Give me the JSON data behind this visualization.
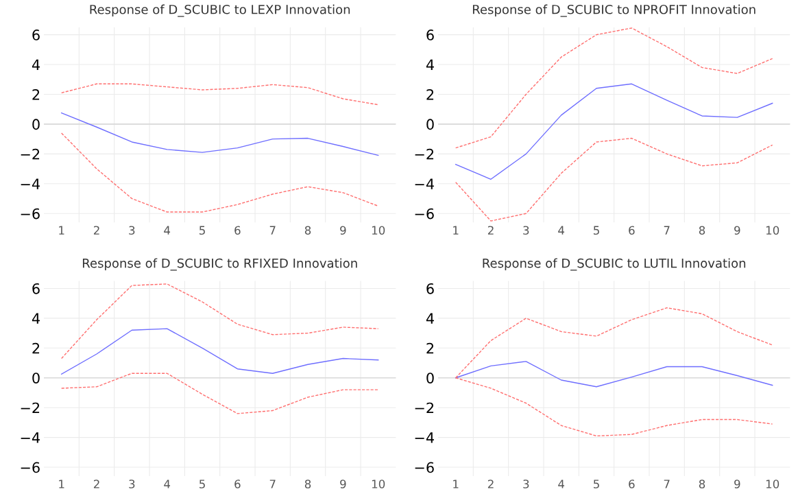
{
  "chart_data": [
    {
      "type": "line",
      "title": "Response of D_SCUBIC to LEXP Innovation",
      "categories": [
        "1",
        "2",
        "3",
        "4",
        "5",
        "6",
        "7",
        "8",
        "9",
        "10"
      ],
      "ylim": [
        -6.6,
        6.5
      ],
      "yticks": [
        -6,
        -4,
        -2,
        0,
        2,
        4,
        6
      ],
      "grid": true,
      "ref_lines": [
        {
          "axis": "y",
          "value": 0,
          "color": "#d9d9d9"
        }
      ],
      "series": [
        {
          "color": "#6e6eff",
          "line_style": "solid",
          "values": [
            0.75,
            -0.2,
            -1.2,
            -1.7,
            -1.9,
            -1.6,
            -1.0,
            -0.95,
            -1.5,
            -2.1
          ]
        },
        {
          "color": "#ff6e6e",
          "line_style": "dashed",
          "values": [
            2.1,
            2.7,
            2.7,
            2.5,
            2.3,
            2.4,
            2.65,
            2.45,
            1.7,
            1.3
          ]
        },
        {
          "color": "#ff6e6e",
          "line_style": "dashed",
          "values": [
            -0.6,
            -3.0,
            -5.0,
            -5.9,
            -5.9,
            -5.4,
            -4.7,
            -4.2,
            -4.6,
            -5.5
          ]
        }
      ]
    },
    {
      "type": "line",
      "title": "Response of D_SCUBIC to NPROFIT Innovation",
      "categories": [
        "1",
        "2",
        "3",
        "4",
        "5",
        "6",
        "7",
        "8",
        "9",
        "10"
      ],
      "ylim": [
        -6.6,
        6.5
      ],
      "yticks": [
        -6,
        -4,
        -2,
        0,
        2,
        4,
        6
      ],
      "grid": true,
      "ref_lines": [
        {
          "axis": "y",
          "value": 0,
          "color": "#d9d9d9"
        }
      ],
      "series": [
        {
          "color": "#6e6eff",
          "line_style": "solid",
          "values": [
            -2.7,
            -3.7,
            -2.0,
            0.6,
            2.4,
            2.7,
            1.6,
            0.55,
            0.45,
            1.4
          ]
        },
        {
          "color": "#ff6e6e",
          "line_style": "dashed",
          "values": [
            -1.6,
            -0.85,
            2.0,
            4.5,
            6.0,
            6.45,
            5.2,
            3.8,
            3.4,
            4.4
          ]
        },
        {
          "color": "#ff6e6e",
          "line_style": "dashed",
          "values": [
            -3.9,
            -6.5,
            -6.0,
            -3.3,
            -1.2,
            -0.95,
            -2.0,
            -2.8,
            -2.6,
            -1.4
          ]
        }
      ]
    },
    {
      "type": "line",
      "title": "Response of D_SCUBIC to RFIXED Innovation",
      "categories": [
        "1",
        "2",
        "3",
        "4",
        "5",
        "6",
        "7",
        "8",
        "9",
        "10"
      ],
      "ylim": [
        -6.6,
        6.5
      ],
      "yticks": [
        -6,
        -4,
        -2,
        0,
        2,
        4,
        6
      ],
      "grid": true,
      "ref_lines": [
        {
          "axis": "y",
          "value": 0,
          "color": "#d9d9d9"
        }
      ],
      "series": [
        {
          "color": "#6e6eff",
          "line_style": "solid",
          "values": [
            0.25,
            1.6,
            3.2,
            3.3,
            2.0,
            0.6,
            0.3,
            0.9,
            1.3,
            1.2
          ]
        },
        {
          "color": "#ff6e6e",
          "line_style": "dashed",
          "values": [
            1.3,
            3.9,
            6.2,
            6.3,
            5.1,
            3.6,
            2.9,
            3.0,
            3.4,
            3.3
          ]
        },
        {
          "color": "#ff6e6e",
          "line_style": "dashed",
          "values": [
            -0.7,
            -0.6,
            0.3,
            0.3,
            -1.1,
            -2.4,
            -2.2,
            -1.3,
            -0.8,
            -0.8
          ]
        }
      ]
    },
    {
      "type": "line",
      "title": "Response of D_SCUBIC to LUTIL Innovation",
      "categories": [
        "1",
        "2",
        "3",
        "4",
        "5",
        "6",
        "7",
        "8",
        "9",
        "10"
      ],
      "ylim": [
        -6.6,
        6.5
      ],
      "yticks": [
        -6,
        -4,
        -2,
        0,
        2,
        4,
        6
      ],
      "grid": true,
      "ref_lines": [
        {
          "axis": "y",
          "value": 0,
          "color": "#d9d9d9"
        }
      ],
      "series": [
        {
          "color": "#6e6eff",
          "line_style": "solid",
          "values": [
            0,
            0.8,
            1.1,
            -0.15,
            -0.6,
            0.05,
            0.75,
            0.75,
            0.15,
            -0.5
          ]
        },
        {
          "color": "#ff6e6e",
          "line_style": "dashed",
          "values": [
            0,
            2.5,
            4.0,
            3.1,
            2.8,
            3.9,
            4.7,
            4.3,
            3.1,
            2.2
          ]
        },
        {
          "color": "#ff6e6e",
          "line_style": "dashed",
          "values": [
            0,
            -0.7,
            -1.7,
            -3.2,
            -3.9,
            -3.8,
            -3.2,
            -2.8,
            -2.8,
            -3.1
          ]
        }
      ]
    }
  ]
}
